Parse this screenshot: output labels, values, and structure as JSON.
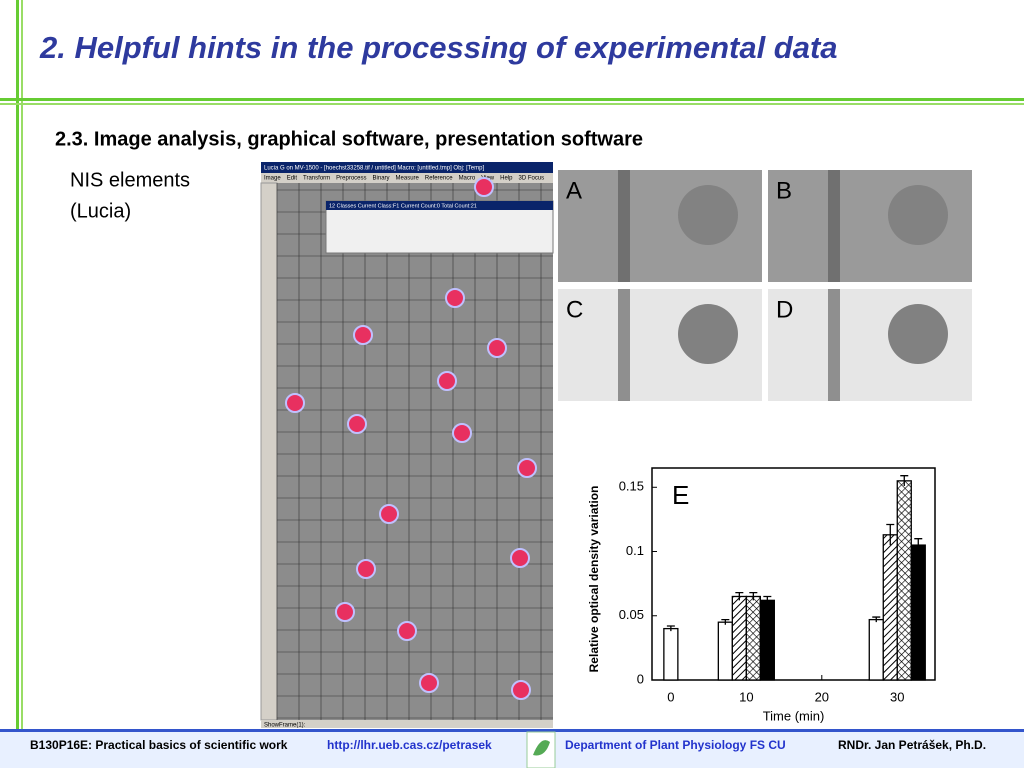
{
  "title": "2. Helpful hints in the processing of experimental data",
  "subtitle": "2.3. Image analysis, graphical software, presentation software",
  "caption": [
    "NIS elements",
    "(Lucia)"
  ],
  "screenshot": {
    "window_title": "Lucia G on MV-1500 - [hoechst33258.tif / untitled]  Macro: [untitled.tmp]  Obj: [Temp]",
    "menu": [
      "Image",
      "Edit",
      "Transform",
      "Preprocess",
      "Binary",
      "Measure",
      "Reference",
      "Macro",
      "View",
      "Help",
      "3D Focus"
    ],
    "panel_title": "12 Classes  Current Class:F1  Current Count:0  Total Count:21",
    "status": "ShowFrame(1):"
  },
  "panels": [
    "A",
    "B",
    "C",
    "D"
  ],
  "chart_data": {
    "type": "bar",
    "label": "E",
    "xlabel": "Time (min)",
    "ylabel": "Relative optical density variation",
    "x": [
      0,
      10,
      20,
      30
    ],
    "series": [
      {
        "color": "#ffffff",
        "pattern": "none",
        "values": [
          0.04,
          0.045,
          null,
          0.047
        ],
        "errors": [
          0.002,
          0.002,
          null,
          0.002
        ]
      },
      {
        "color": "#ffffff",
        "pattern": "hatch",
        "values": [
          null,
          0.065,
          null,
          0.113
        ],
        "errors": [
          null,
          0.003,
          null,
          0.008
        ]
      },
      {
        "color": "#ffffff",
        "pattern": "cross",
        "values": [
          null,
          0.065,
          null,
          0.155
        ],
        "errors": [
          null,
          0.003,
          null,
          0.004
        ]
      },
      {
        "color": "#000000",
        "pattern": "none",
        "values": [
          null,
          0.062,
          null,
          0.105
        ],
        "errors": [
          null,
          0.003,
          null,
          0.005
        ]
      }
    ],
    "xlim": [
      -2.5,
      35
    ],
    "xticks": [
      0,
      10,
      20,
      30
    ],
    "ylim": [
      0,
      0.165
    ],
    "yticks": [
      0,
      0.05,
      0.1,
      0.15
    ]
  },
  "footer": {
    "course": "B130P16E: Practical basics of scientific work",
    "url": "http://lhr.ueb.cas.cz/petrasek",
    "department": "Department of Plant Physiology FS CU",
    "author": "RNDr. Jan Petrášek, Ph.D."
  }
}
